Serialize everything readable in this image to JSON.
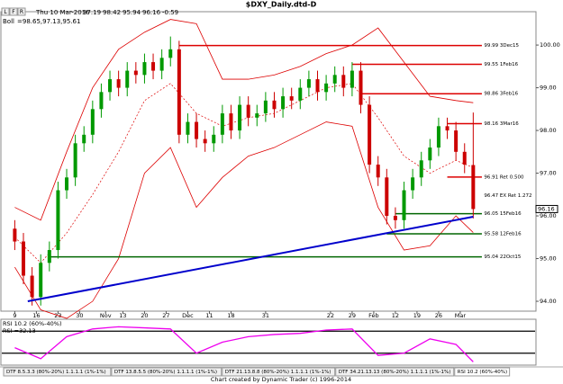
{
  "chart_data": {
    "type": "candlestick",
    "title": "$DXY_Daily.dtd-D",
    "header": {
      "buttons": [
        "L",
        "F",
        "R"
      ],
      "date": "Thu 10 Mar-2016",
      "change": -0.59,
      "boll_name": "Boll",
      "boll_values": "=98.65,97.13,95.61"
    },
    "x": [
      0,
      2,
      4,
      6,
      8,
      10,
      12,
      14,
      16,
      18,
      20,
      22,
      24,
      26,
      28,
      30,
      32,
      34,
      36,
      38,
      40,
      42,
      44,
      46,
      48,
      50,
      52,
      54,
      56,
      58,
      60,
      62,
      64,
      66,
      68,
      70,
      72,
      74,
      76,
      78,
      80,
      82,
      84,
      86,
      88,
      90,
      92,
      94,
      96,
      98,
      100,
      102,
      104,
      106
    ],
    "open": [
      95.7,
      95.4,
      94.6,
      94.1,
      94.9,
      95.2,
      96.6,
      96.9,
      97.7,
      97.9,
      98.5,
      98.9,
      99.2,
      99.0,
      99.4,
      99.3,
      99.6,
      99.4,
      99.7,
      99.9,
      97.9,
      98.2,
      97.8,
      97.7,
      97.9,
      98.4,
      98.0,
      98.6,
      98.3,
      98.4,
      98.7,
      98.5,
      98.8,
      98.7,
      99.0,
      99.2,
      98.9,
      99.1,
      99.3,
      99.0,
      99.4,
      98.6,
      97.2,
      96.9,
      96.0,
      95.9,
      96.6,
      96.9,
      97.3,
      97.6,
      98.1,
      98.0,
      97.5,
      97.19
    ],
    "high": [
      95.9,
      95.6,
      94.8,
      95.1,
      95.4,
      96.8,
      97.1,
      97.9,
      98.1,
      98.7,
      99.1,
      99.4,
      99.4,
      99.6,
      99.6,
      99.8,
      99.8,
      99.9,
      100.2,
      100.1,
      98.4,
      98.4,
      98.0,
      98.1,
      98.6,
      98.6,
      98.8,
      98.8,
      98.6,
      98.9,
      98.9,
      99.0,
      99.0,
      99.2,
      99.4,
      99.4,
      99.3,
      99.5,
      99.5,
      99.6,
      99.6,
      98.8,
      97.4,
      97.1,
      96.2,
      96.8,
      97.1,
      97.5,
      97.8,
      98.3,
      98.3,
      98.2,
      97.7,
      98.42
    ],
    "low": [
      95.2,
      94.4,
      93.9,
      93.9,
      94.7,
      95.0,
      96.4,
      96.7,
      97.5,
      97.7,
      98.3,
      98.7,
      98.8,
      98.8,
      99.1,
      99.1,
      99.2,
      99.2,
      99.5,
      97.7,
      97.7,
      97.6,
      97.5,
      97.5,
      97.7,
      97.8,
      97.8,
      98.1,
      98.1,
      98.2,
      98.3,
      98.3,
      98.5,
      98.5,
      98.8,
      98.7,
      98.7,
      98.9,
      98.8,
      98.8,
      98.4,
      97.0,
      96.7,
      95.8,
      95.7,
      95.7,
      96.4,
      96.7,
      97.1,
      97.4,
      97.8,
      97.3,
      97.0,
      95.94
    ],
    "close": [
      95.4,
      94.6,
      94.1,
      94.9,
      95.2,
      96.6,
      96.9,
      97.7,
      97.9,
      98.5,
      98.9,
      99.2,
      99.0,
      99.4,
      99.3,
      99.6,
      99.4,
      99.7,
      99.9,
      97.9,
      98.2,
      97.8,
      97.7,
      97.9,
      98.4,
      98.0,
      98.6,
      98.3,
      98.4,
      98.7,
      98.5,
      98.8,
      98.7,
      99.0,
      99.2,
      98.9,
      99.1,
      99.3,
      99.0,
      99.4,
      98.6,
      97.2,
      96.9,
      96.0,
      95.9,
      96.6,
      96.9,
      97.3,
      97.6,
      98.1,
      98.0,
      97.5,
      97.2,
      96.16
    ],
    "up_color": "#009900",
    "down_color": "#cc0000",
    "bollinger": {
      "color": "#dd0000",
      "x": [
        0,
        6,
        12,
        18,
        24,
        30,
        36,
        42,
        48,
        54,
        60,
        66,
        72,
        78,
        84,
        90,
        96,
        102,
        106
      ],
      "upper": [
        96.2,
        95.9,
        97.5,
        99.0,
        99.9,
        100.3,
        100.6,
        100.5,
        99.2,
        99.2,
        99.3,
        99.5,
        99.8,
        100.0,
        100.4,
        99.6,
        98.8,
        98.7,
        98.65
      ],
      "mid": [
        95.5,
        94.9,
        95.6,
        96.5,
        97.5,
        98.7,
        99.1,
        98.4,
        98.1,
        98.3,
        98.4,
        98.7,
        99.0,
        99.1,
        98.3,
        97.4,
        97.0,
        97.3,
        97.13
      ],
      "lower": [
        94.8,
        93.8,
        93.6,
        94.0,
        95.0,
        97.0,
        97.6,
        96.2,
        96.9,
        97.4,
        97.6,
        97.9,
        98.2,
        98.1,
        96.2,
        95.2,
        95.3,
        96.0,
        95.61
      ]
    },
    "trendline": {
      "color": "#0000cc",
      "x": [
        3,
        106
      ],
      "y": [
        94.0,
        95.98
      ]
    },
    "levels": [
      {
        "value": 99.99,
        "label": "99.99 3Dec15",
        "from": 38,
        "color": "#dd0000"
      },
      {
        "value": 99.55,
        "label": "99.55 1Feb16",
        "from": 78,
        "color": "#dd0000"
      },
      {
        "value": 98.86,
        "label": "98.86 3Feb16",
        "from": 80,
        "color": "#dd0000"
      },
      {
        "value": 98.16,
        "label": "98.16 3Mar16",
        "from": 100,
        "color": "#dd0000"
      },
      {
        "value": 96.91,
        "label": "96.91 Ret 0.500",
        "from": 100,
        "color": "#dd0000"
      },
      {
        "value": 96.47,
        "label": "96.47 EX Ret 1.272",
        "from": null,
        "color": "#dd0000"
      },
      {
        "value": 96.05,
        "label": "96.05 15Feb16",
        "from": 88,
        "color": "#006600"
      },
      {
        "value": 95.58,
        "label": "95.58 12Feb16",
        "from": 86,
        "color": "#006600"
      },
      {
        "value": 95.04,
        "label": "95.04 22Oct15",
        "from": 8,
        "color": "#006600"
      }
    ],
    "xlim": [
      -3,
      120.3
    ],
    "xticks": [
      {
        "value": 0,
        "label": "9"
      },
      {
        "value": 5,
        "label": "16"
      },
      {
        "value": 10,
        "label": "23"
      },
      {
        "value": 15,
        "label": "30"
      },
      {
        "value": 21,
        "label": "Nov"
      },
      {
        "value": 25,
        "label": "13"
      },
      {
        "value": 30,
        "label": "20"
      },
      {
        "value": 35,
        "label": "27"
      },
      {
        "value": 40,
        "label": "Dec"
      },
      {
        "value": 45,
        "label": "11"
      },
      {
        "value": 50,
        "label": "18"
      },
      {
        "value": 58,
        "label": "31"
      },
      {
        "value": 73,
        "label": "22"
      },
      {
        "value": 78,
        "label": "29"
      },
      {
        "value": 83,
        "label": "Feb"
      },
      {
        "value": 88,
        "label": "12"
      },
      {
        "value": 93,
        "label": "19"
      },
      {
        "value": 98,
        "label": "26"
      },
      {
        "value": 103,
        "label": "Mar"
      }
    ],
    "ylim": [
      93.79,
      100.76
    ],
    "yticks": [
      {
        "value": 94,
        "label": "94.00"
      },
      {
        "value": 95,
        "label": "95.00"
      },
      {
        "value": 96,
        "label": "96.00"
      },
      {
        "value": 97,
        "label": "97.00"
      },
      {
        "value": 98,
        "label": "98.00"
      },
      {
        "value": 99,
        "label": "99.00"
      },
      {
        "value": 100,
        "label": "100.00"
      }
    ],
    "rsi": {
      "title": "RSI 10.2 (60%-40%)",
      "readout": "RSI =32.13",
      "color": "#ee00ee",
      "ylim": [
        30,
        70
      ],
      "levels": [
        60,
        40
      ],
      "x": [
        0,
        6,
        12,
        18,
        24,
        30,
        36,
        42,
        48,
        54,
        60,
        66,
        72,
        78,
        84,
        90,
        96,
        102,
        106
      ],
      "values": [
        45,
        35,
        55,
        62,
        64,
        63,
        62,
        40,
        50,
        55,
        57,
        58,
        61,
        62,
        38,
        40,
        53,
        48,
        32.13
      ]
    },
    "tabs": [
      "DTF 8.5.3.3 (80%-20%) 1.1.1.1 (1%-1%)",
      "DTF 13.8.5.5 (80%-20%) 1.1.1.1 (1%-1%)",
      "DTF 21.13.8.8 (80%-20%) 1.1.1.1 (1%-1%)",
      "DTF 34.21.13.13 (80%-20%) 1.1.1.1 (1%-1%)",
      "RSI 10.2 (60%-40%)"
    ],
    "footer": "Chart created by Dynamic Trader  (c)  1996-2014"
  }
}
